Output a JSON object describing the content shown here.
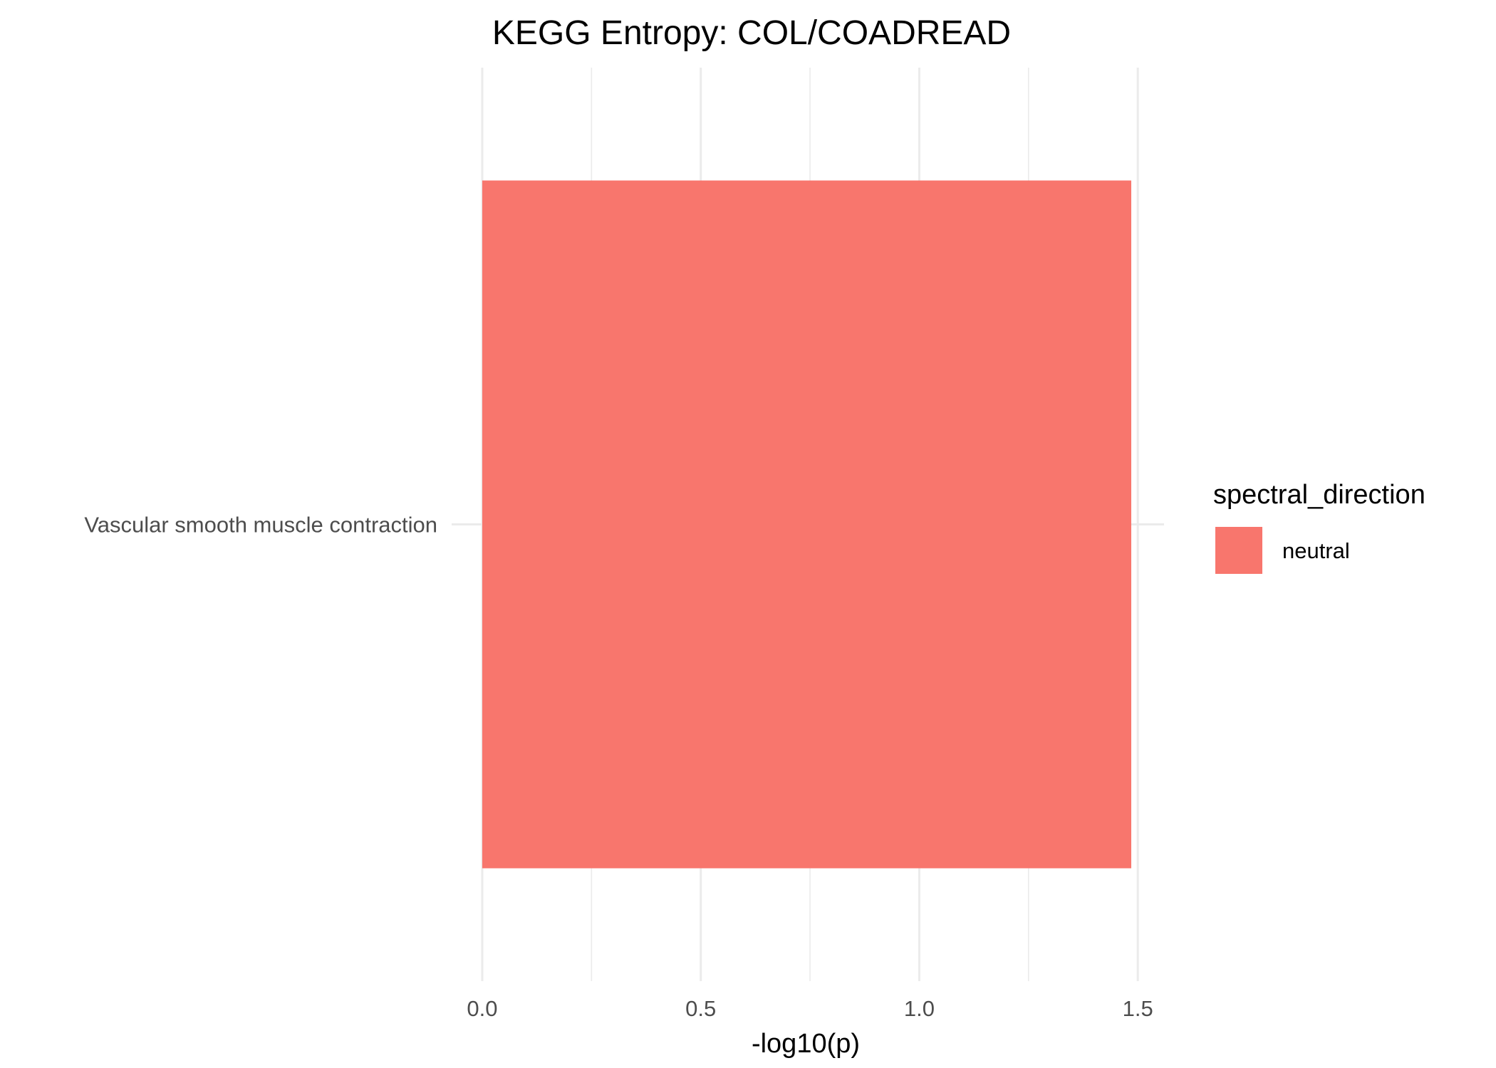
{
  "chart_data": {
    "type": "bar",
    "orientation": "horizontal",
    "title": "KEGG Entropy: COL/COADREAD",
    "xlabel": "-log10(p)",
    "ylabel": "",
    "categories": [
      "Vascular smooth muscle contraction"
    ],
    "series": [
      {
        "name": "neutral",
        "values": [
          1.485
        ],
        "color": "#F8766D"
      }
    ],
    "xlim": [
      -0.07,
      1.56
    ],
    "xticks": [
      0.0,
      0.5,
      1.0,
      1.5
    ],
    "xtick_labels": [
      "0.0",
      "0.5",
      "1.0",
      "1.5"
    ],
    "grid": true,
    "legend": {
      "title": "spectral_direction",
      "position": "right",
      "entries": [
        "neutral"
      ]
    }
  }
}
